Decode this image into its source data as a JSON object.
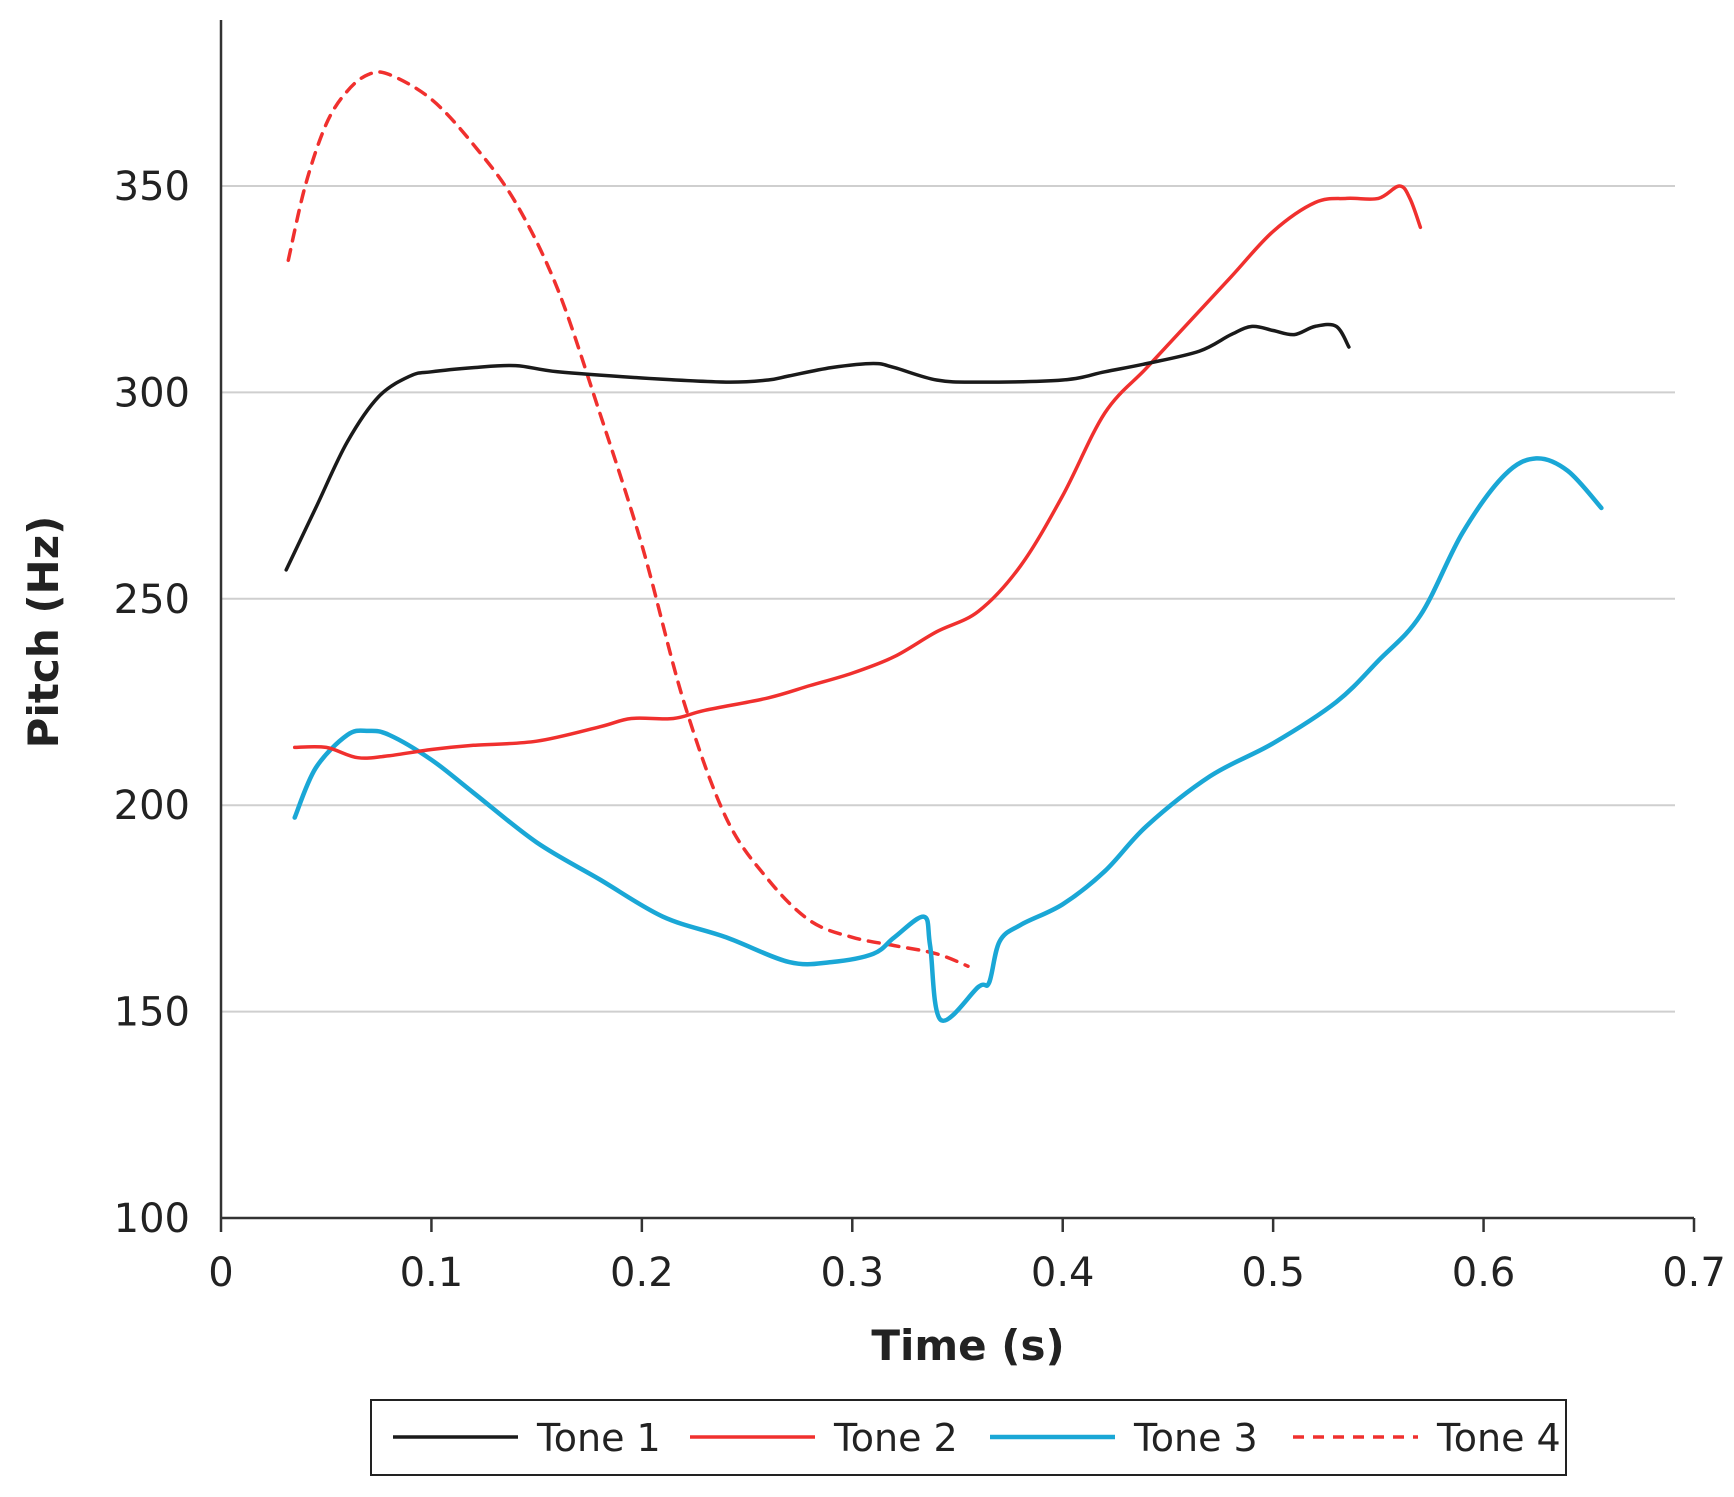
{
  "chart_data": {
    "type": "line",
    "title": "",
    "xlabel": "Time (s)",
    "ylabel": "Pitch (Hz)",
    "xlim": [
      0,
      0.7
    ],
    "ylim": [
      100,
      390
    ],
    "x_ticks": [
      0,
      0.1,
      0.2,
      0.3,
      0.4,
      0.5,
      0.6,
      0.7
    ],
    "x_tick_labels": [
      "0",
      "0.1",
      "0.2",
      "0.3",
      "0.4",
      "0.5",
      "0.6",
      "0.7"
    ],
    "y_ticks": [
      100,
      150,
      200,
      250,
      300,
      350
    ],
    "y_tick_labels": [
      "100",
      "150",
      "200",
      "250",
      "300",
      "350"
    ],
    "gridlines": [
      150,
      200,
      250,
      300,
      350
    ],
    "legend_position": "bottom",
    "series": [
      {
        "name": "Tone 1",
        "color": "#1a1a1a",
        "dash": "solid",
        "points": [
          [
            0.031,
            257
          ],
          [
            0.045,
            272
          ],
          [
            0.06,
            288
          ],
          [
            0.075,
            299
          ],
          [
            0.09,
            304
          ],
          [
            0.1,
            305
          ],
          [
            0.12,
            306
          ],
          [
            0.14,
            306.5
          ],
          [
            0.16,
            305
          ],
          [
            0.2,
            303.5
          ],
          [
            0.24,
            302.5
          ],
          [
            0.26,
            303
          ],
          [
            0.27,
            304
          ],
          [
            0.29,
            306
          ],
          [
            0.31,
            307
          ],
          [
            0.32,
            306
          ],
          [
            0.34,
            303
          ],
          [
            0.36,
            302.5
          ],
          [
            0.4,
            303
          ],
          [
            0.42,
            305
          ],
          [
            0.44,
            307
          ],
          [
            0.465,
            310
          ],
          [
            0.48,
            314
          ],
          [
            0.49,
            316
          ],
          [
            0.5,
            315
          ],
          [
            0.51,
            314
          ],
          [
            0.52,
            316
          ],
          [
            0.53,
            316
          ],
          [
            0.536,
            311
          ]
        ]
      },
      {
        "name": "Tone 2",
        "color": "#f0302e",
        "dash": "solid",
        "points": [
          [
            0.035,
            214
          ],
          [
            0.05,
            214
          ],
          [
            0.065,
            211.5
          ],
          [
            0.08,
            212
          ],
          [
            0.1,
            213.5
          ],
          [
            0.12,
            214.5
          ],
          [
            0.15,
            215.5
          ],
          [
            0.18,
            219
          ],
          [
            0.195,
            221
          ],
          [
            0.215,
            221
          ],
          [
            0.23,
            223
          ],
          [
            0.26,
            226
          ],
          [
            0.28,
            229
          ],
          [
            0.3,
            232
          ],
          [
            0.32,
            236
          ],
          [
            0.34,
            242
          ],
          [
            0.36,
            247
          ],
          [
            0.38,
            258
          ],
          [
            0.4,
            275
          ],
          [
            0.42,
            295
          ],
          [
            0.44,
            306
          ],
          [
            0.46,
            317
          ],
          [
            0.48,
            328
          ],
          [
            0.5,
            339
          ],
          [
            0.52,
            346
          ],
          [
            0.535,
            347
          ],
          [
            0.55,
            347
          ],
          [
            0.56,
            350
          ],
          [
            0.565,
            347
          ],
          [
            0.57,
            340
          ]
        ]
      },
      {
        "name": "Tone 3",
        "color": "#1aa7d6",
        "dash": "solid",
        "points": [
          [
            0.035,
            197
          ],
          [
            0.045,
            209
          ],
          [
            0.06,
            217
          ],
          [
            0.07,
            218
          ],
          [
            0.08,
            217
          ],
          [
            0.1,
            211
          ],
          [
            0.12,
            203
          ],
          [
            0.15,
            191
          ],
          [
            0.18,
            182
          ],
          [
            0.21,
            173
          ],
          [
            0.24,
            168
          ],
          [
            0.27,
            162
          ],
          [
            0.29,
            162
          ],
          [
            0.31,
            164
          ],
          [
            0.32,
            168
          ],
          [
            0.334,
            173
          ],
          [
            0.337,
            166
          ],
          [
            0.342,
            148
          ],
          [
            0.36,
            156
          ],
          [
            0.365,
            157
          ],
          [
            0.37,
            167
          ],
          [
            0.38,
            171
          ],
          [
            0.4,
            176
          ],
          [
            0.42,
            184
          ],
          [
            0.44,
            195
          ],
          [
            0.47,
            207
          ],
          [
            0.5,
            215
          ],
          [
            0.53,
            225
          ],
          [
            0.55,
            235
          ],
          [
            0.57,
            246
          ],
          [
            0.59,
            266
          ],
          [
            0.61,
            280
          ],
          [
            0.625,
            284
          ],
          [
            0.64,
            281
          ],
          [
            0.656,
            272
          ]
        ]
      },
      {
        "name": "Tone 4",
        "color": "#f0302e",
        "dash": "dashed",
        "points": [
          [
            0.032,
            332
          ],
          [
            0.04,
            350
          ],
          [
            0.05,
            365
          ],
          [
            0.06,
            373
          ],
          [
            0.07,
            377
          ],
          [
            0.08,
            377
          ],
          [
            0.1,
            371
          ],
          [
            0.12,
            360
          ],
          [
            0.14,
            346
          ],
          [
            0.16,
            325
          ],
          [
            0.18,
            295
          ],
          [
            0.2,
            263
          ],
          [
            0.22,
            225
          ],
          [
            0.24,
            197
          ],
          [
            0.26,
            182
          ],
          [
            0.28,
            172
          ],
          [
            0.3,
            168
          ],
          [
            0.32,
            166
          ],
          [
            0.34,
            164
          ],
          [
            0.355,
            161
          ]
        ]
      }
    ]
  }
}
